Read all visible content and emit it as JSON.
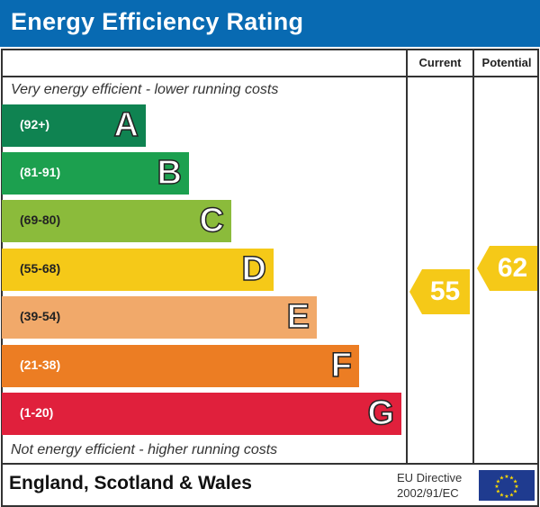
{
  "title": "Energy Efficiency Rating",
  "columns": {
    "current": "Current",
    "potential": "Potential"
  },
  "top_note": "Very energy efficient - lower running costs",
  "bottom_note": "Not energy efficient - higher running costs",
  "footer": {
    "region": "England, Scotland & Wales",
    "directive_line1": "EU Directive",
    "directive_line2": "2002/91/EC"
  },
  "chart_data": {
    "type": "bar",
    "categories": [
      "A",
      "B",
      "C",
      "D",
      "E",
      "F",
      "G"
    ],
    "ranges": [
      "(92+)",
      "(81-91)",
      "(69-80)",
      "(55-68)",
      "(39-54)",
      "(21-38)",
      "(1-20)"
    ],
    "colors": [
      "#0f8351",
      "#1ca04f",
      "#8bbb3b",
      "#f5c918",
      "#f1a96a",
      "#ec7d23",
      "#e0203c"
    ],
    "current": {
      "label": "Current",
      "value": 55,
      "band": "D",
      "color": "#f5c918"
    },
    "potential": {
      "label": "Potential",
      "value": 62,
      "band": "D",
      "color": "#f5c918"
    }
  }
}
